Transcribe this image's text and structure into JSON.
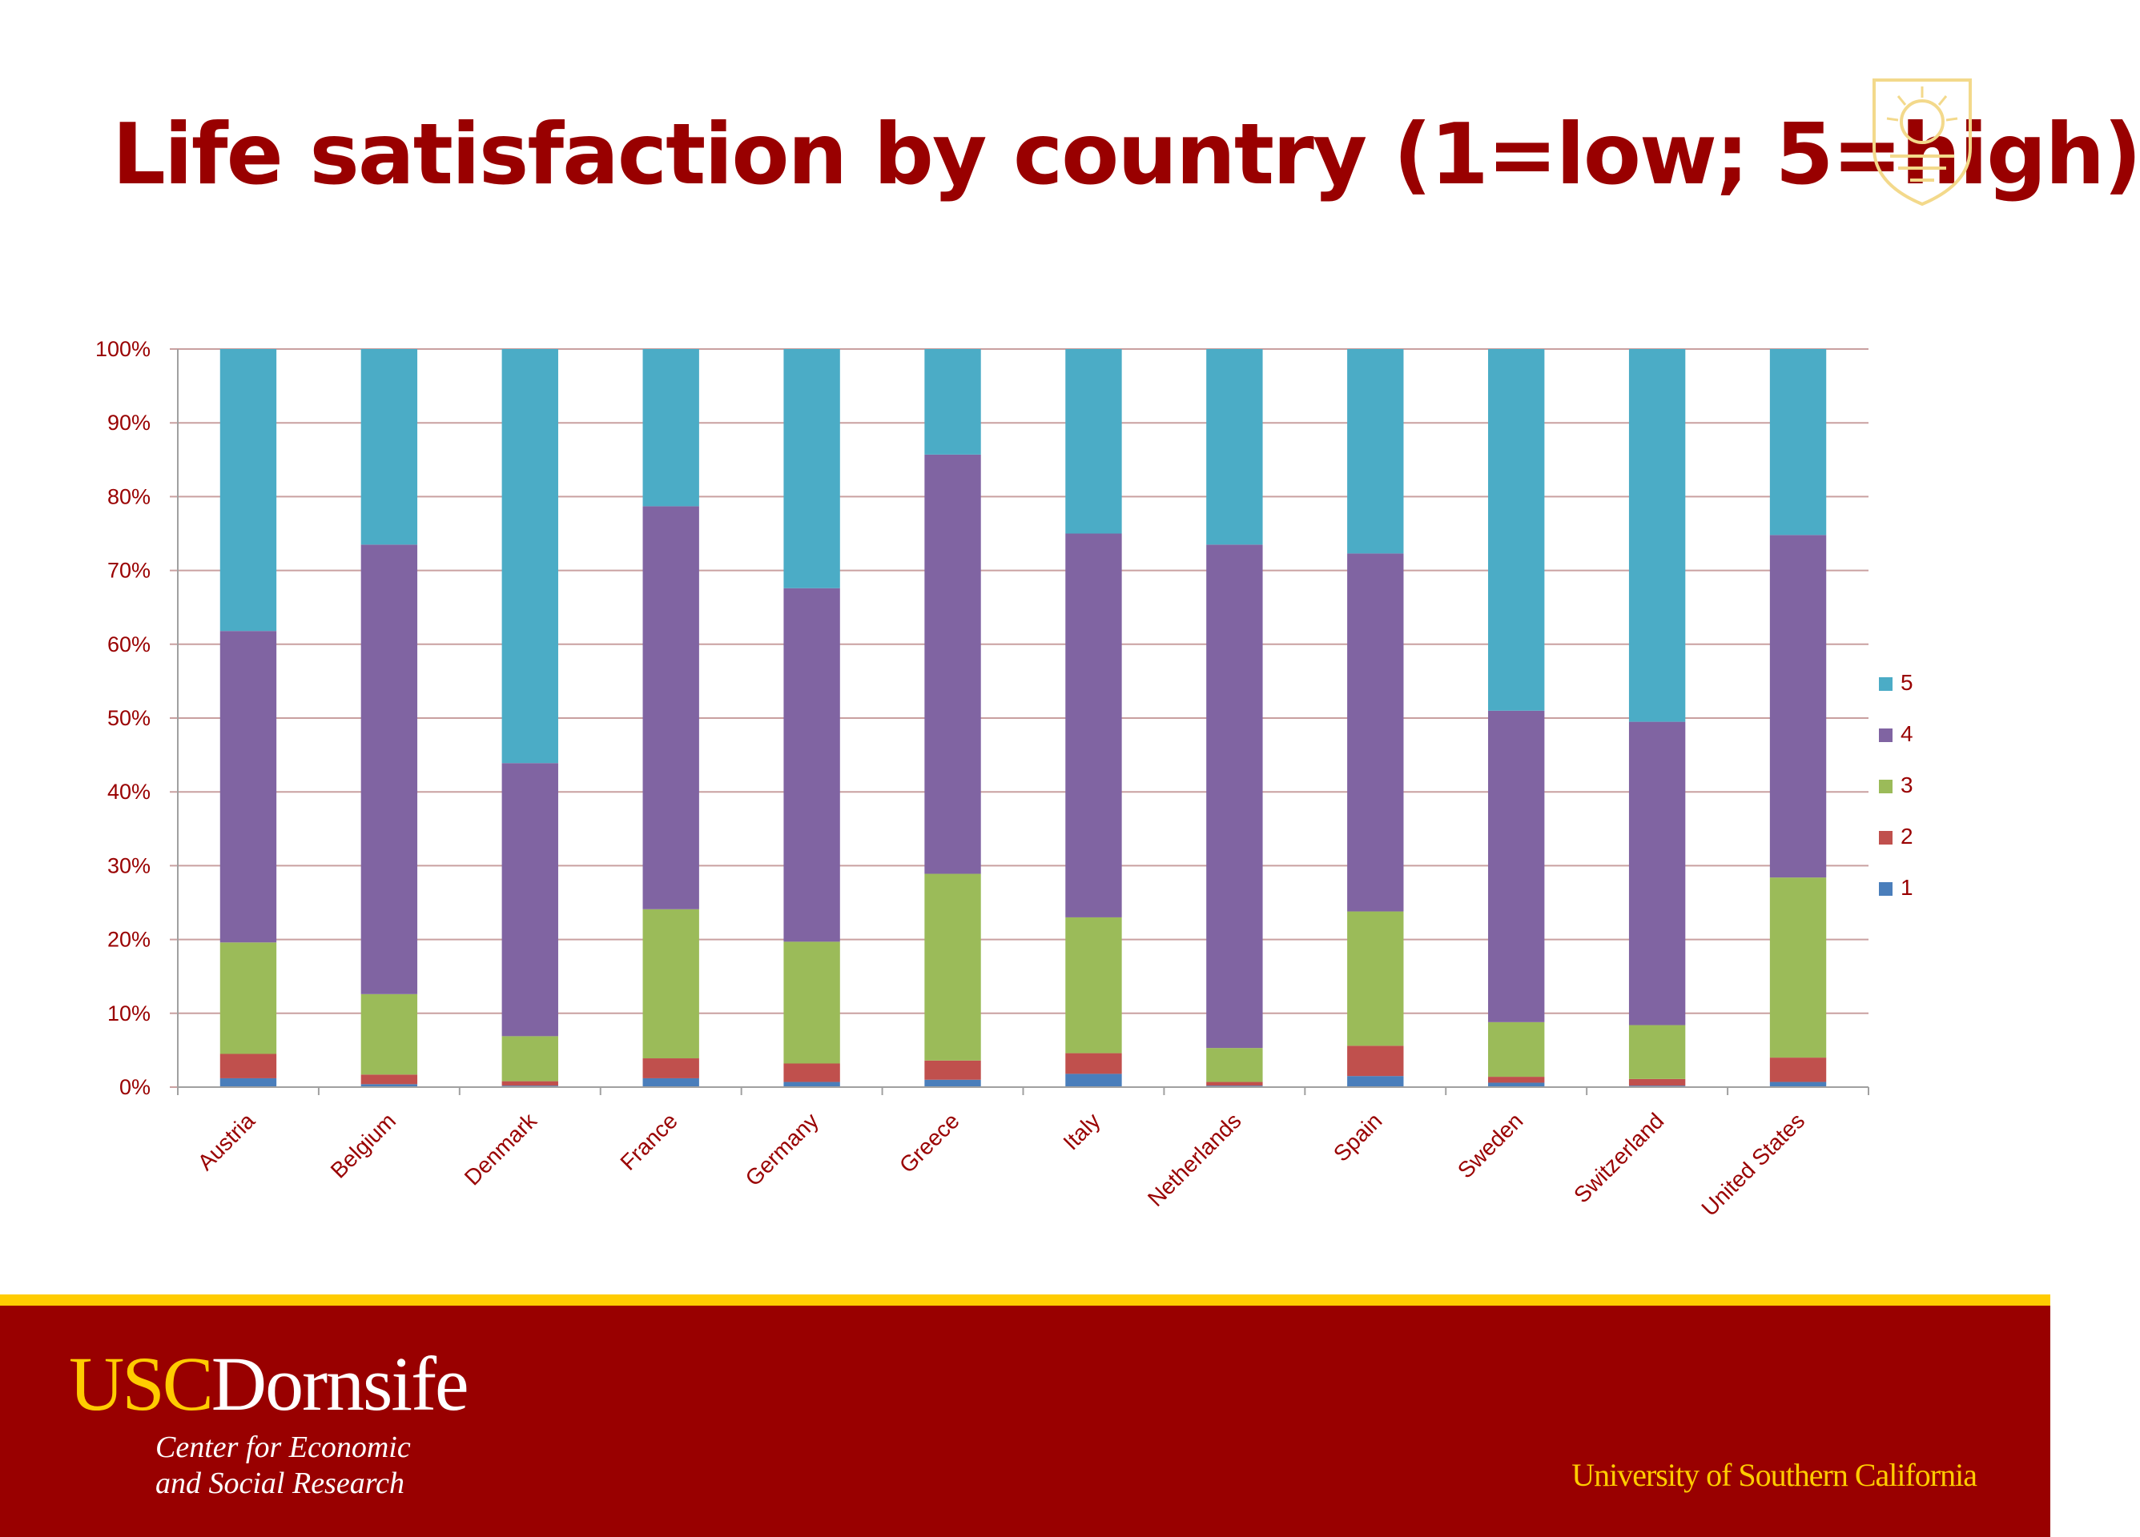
{
  "slide": {
    "title": "Life satisfaction by country (1=low; 5=high)"
  },
  "footer": {
    "brand_usc": "USC",
    "brand_dornsife": "Dornsife",
    "center_line_1": "Center for Economic",
    "center_line_2": "and Social Research",
    "university": "University of Southern California"
  },
  "colors": {
    "title": "#990000",
    "footer_bg": "#990000",
    "footer_stripe": "#FFCC00",
    "gold": "#FFCC00",
    "axis_text": "#990000",
    "gridline": "#C9A0A0"
  },
  "chart_data": {
    "type": "bar",
    "stacked": true,
    "percent": true,
    "title": "",
    "xlabel": "",
    "ylabel": "",
    "ylim": [
      0,
      100
    ],
    "yticks": [
      "0%",
      "10%",
      "20%",
      "30%",
      "40%",
      "50%",
      "60%",
      "70%",
      "80%",
      "90%",
      "100%"
    ],
    "grid": true,
    "legend_position": "right",
    "categories": [
      "Austria",
      "Belgium",
      "Denmark",
      "France",
      "Germany",
      "Greece",
      "Italy",
      "Netherlands",
      "Spain",
      "Sweden",
      "Switzerland",
      "United States"
    ],
    "series": [
      {
        "name": "1",
        "color": "#4A7EBB",
        "values": [
          1.2,
          0.4,
          0.2,
          1.2,
          0.7,
          1.0,
          1.8,
          0.2,
          1.5,
          0.6,
          0.2,
          0.7
        ]
      },
      {
        "name": "2",
        "color": "#C0504D",
        "values": [
          3.3,
          1.3,
          0.6,
          2.7,
          2.5,
          2.6,
          2.8,
          0.5,
          4.1,
          0.8,
          0.9,
          3.3
        ]
      },
      {
        "name": "3",
        "color": "#9BBB59",
        "values": [
          15.1,
          10.9,
          6.1,
          20.2,
          16.5,
          25.3,
          18.4,
          4.6,
          18.2,
          7.4,
          7.3,
          24.4
        ]
      },
      {
        "name": "4",
        "color": "#8064A2",
        "values": [
          42.2,
          60.9,
          37.0,
          54.6,
          47.9,
          56.8,
          52.0,
          68.2,
          48.5,
          42.2,
          41.1,
          46.4
        ]
      },
      {
        "name": "5",
        "color": "#4BACC6",
        "values": [
          38.2,
          26.5,
          56.1,
          21.3,
          32.4,
          14.3,
          25.0,
          26.5,
          27.7,
          49.0,
          50.5,
          25.2
        ]
      }
    ]
  }
}
